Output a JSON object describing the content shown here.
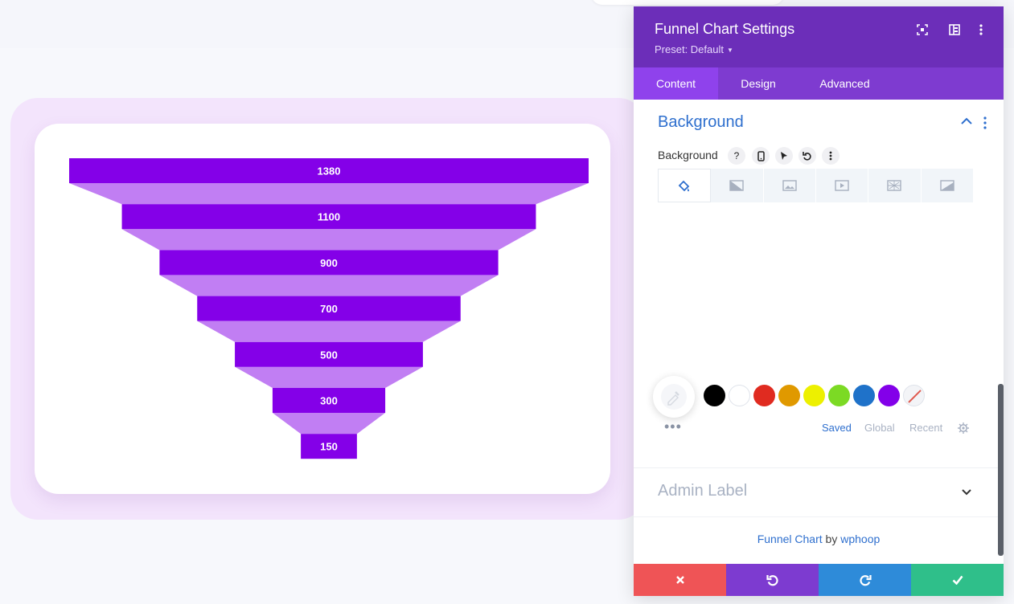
{
  "chart_data": {
    "type": "funnel",
    "values": [
      1380,
      1100,
      900,
      700,
      500,
      300,
      150
    ],
    "bar_color": "#8400e8",
    "connector_color": "#c17ef3"
  },
  "panel": {
    "title": "Funnel Chart Settings",
    "preset": "Preset: Default",
    "tabs": [
      "Content",
      "Design",
      "Advanced"
    ],
    "active_tab": "Content",
    "section_title": "Background",
    "field_label": "Background",
    "tool_icons": [
      "help-icon",
      "mobile-icon",
      "cursor-icon",
      "undo-icon",
      "more-icon"
    ],
    "background_types": [
      "color-icon",
      "gradient-icon",
      "image-icon",
      "video-icon",
      "pattern-icon",
      "mask-icon"
    ],
    "swatches": [
      "#000000",
      "#ffffff",
      "#e02b20",
      "#e09900",
      "#edf000",
      "#7cda24",
      "#1f72c9",
      "#8300e9"
    ],
    "swatch_tabs": [
      "Saved",
      "Global",
      "Recent"
    ],
    "active_swatch_tab": "Saved",
    "admin_label": "Admin Label",
    "credit": {
      "product": "Funnel Chart",
      "by": "by",
      "author": "wphoop"
    },
    "footer_buttons": [
      {
        "name": "discard-button",
        "icon": "close-icon",
        "color": "#ef5456"
      },
      {
        "name": "undo-button",
        "icon": "undo-icon",
        "color": "#7d3bd0"
      },
      {
        "name": "redo-button",
        "icon": "redo-icon",
        "color": "#2e8bd9"
      },
      {
        "name": "save-button",
        "icon": "check-icon",
        "color": "#2fbf8a"
      }
    ]
  }
}
